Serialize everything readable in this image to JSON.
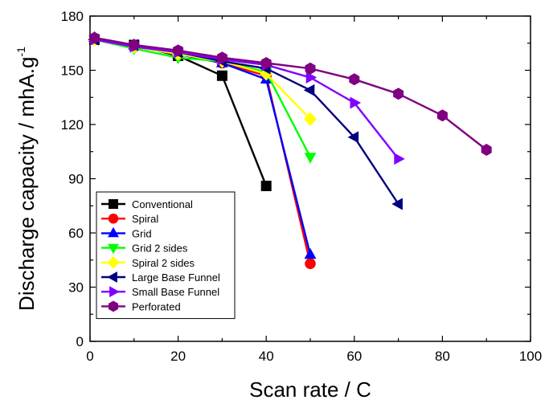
{
  "chart_data": {
    "type": "line",
    "title": "",
    "xlabel": "Scan rate / C",
    "ylabel": "Discharge capacity / mhA.g",
    "ylabel_superscript": "-1",
    "xlim": [
      0,
      100
    ],
    "ylim": [
      0,
      180
    ],
    "xticks": [
      0,
      20,
      40,
      60,
      80,
      100
    ],
    "yticks": [
      0,
      30,
      60,
      90,
      120,
      150,
      180
    ],
    "grid": false,
    "legend_position": "bottom-left",
    "series": [
      {
        "name": "Conventional",
        "color": "#000000",
        "marker": "square",
        "x": [
          1,
          10,
          20,
          30,
          40
        ],
        "y": [
          167,
          164,
          158,
          147,
          86
        ]
      },
      {
        "name": "Spiral",
        "color": "#ff0000",
        "marker": "circle",
        "x": [
          1,
          10,
          20,
          30,
          40,
          50
        ],
        "y": [
          167,
          163,
          159,
          154,
          147,
          43
        ]
      },
      {
        "name": "Grid",
        "color": "#0000ff",
        "marker": "triangle-up",
        "x": [
          1,
          10,
          20,
          30,
          40,
          50
        ],
        "y": [
          168,
          164,
          159,
          154,
          145,
          48
        ]
      },
      {
        "name": "Grid 2 sides",
        "color": "#00ff00",
        "marker": "triangle-down",
        "x": [
          1,
          10,
          20,
          30,
          40,
          50
        ],
        "y": [
          167,
          162,
          157,
          155,
          149,
          102
        ]
      },
      {
        "name": "Spiral 2 sides",
        "color": "#ffff00",
        "marker": "diamond",
        "x": [
          1,
          10,
          20,
          30,
          40,
          50
        ],
        "y": [
          167,
          163,
          159,
          155,
          148,
          123
        ]
      },
      {
        "name": "Large Base Funnel",
        "color": "#000080",
        "marker": "triangle-left",
        "x": [
          1,
          10,
          20,
          30,
          40,
          50,
          60,
          70
        ],
        "y": [
          167,
          164,
          160,
          155,
          151,
          139,
          113,
          76
        ]
      },
      {
        "name": "Small Base Funnel",
        "color": "#8000ff",
        "marker": "triangle-right",
        "x": [
          1,
          10,
          20,
          30,
          40,
          50,
          60,
          70
        ],
        "y": [
          167,
          163,
          160,
          156,
          153,
          146,
          132,
          101
        ]
      },
      {
        "name": "Perforated",
        "color": "#800080",
        "marker": "hexagon",
        "x": [
          1,
          10,
          20,
          30,
          40,
          50,
          60,
          70,
          80,
          90
        ],
        "y": [
          168,
          164,
          161,
          157,
          154,
          151,
          145,
          137,
          125,
          106
        ]
      }
    ]
  }
}
